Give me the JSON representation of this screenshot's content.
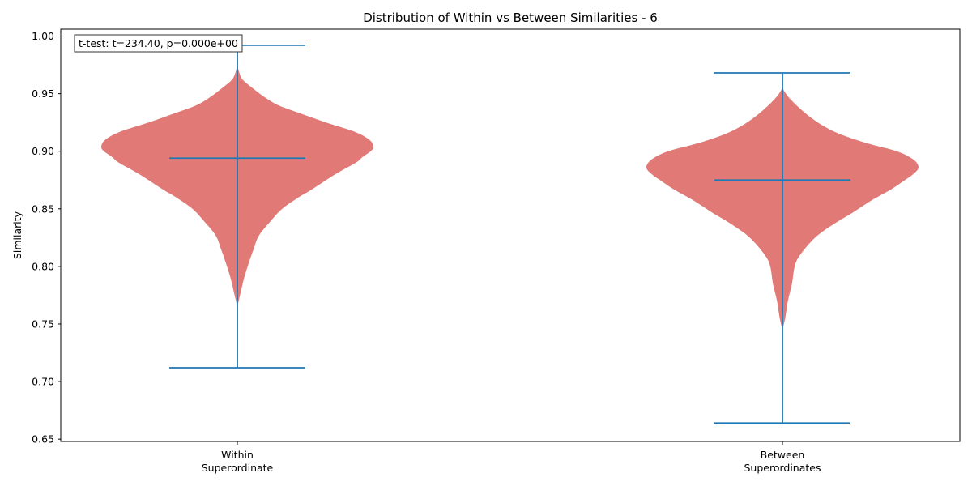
{
  "chart_data": {
    "type": "violin",
    "title": "Distribution of Within vs Between Similarities - 6",
    "ylabel": "Similarity",
    "xlabel": "",
    "ylim": [
      0.648,
      1.006
    ],
    "yticks": [
      "0.65",
      "0.70",
      "0.75",
      "0.80",
      "0.85",
      "0.90",
      "0.95",
      "1.00"
    ],
    "ytick_values": [
      0.65,
      0.7,
      0.75,
      0.8,
      0.85,
      0.9,
      0.95,
      1.0
    ],
    "grid": false,
    "categories": [
      {
        "line1": "Within",
        "line2": "Superordinate"
      },
      {
        "line1": "Between",
        "line2": "Superordinates"
      }
    ],
    "violins": [
      {
        "min": 0.712,
        "max": 0.992,
        "mean": 0.894,
        "density_profile": [
          [
            0.765,
            0.0
          ],
          [
            0.775,
            0.02
          ],
          [
            0.79,
            0.05
          ],
          [
            0.805,
            0.09
          ],
          [
            0.815,
            0.12
          ],
          [
            0.827,
            0.16
          ],
          [
            0.84,
            0.25
          ],
          [
            0.85,
            0.33
          ],
          [
            0.86,
            0.45
          ],
          [
            0.867,
            0.55
          ],
          [
            0.88,
            0.72
          ],
          [
            0.89,
            0.87
          ],
          [
            0.895,
            0.92
          ],
          [
            0.9,
            0.98
          ],
          [
            0.904,
            1.0
          ],
          [
            0.91,
            0.97
          ],
          [
            0.917,
            0.86
          ],
          [
            0.925,
            0.65
          ],
          [
            0.933,
            0.46
          ],
          [
            0.94,
            0.3
          ],
          [
            0.947,
            0.2
          ],
          [
            0.955,
            0.11
          ],
          [
            0.962,
            0.04
          ],
          [
            0.968,
            0.015
          ],
          [
            0.975,
            0.0
          ]
        ]
      },
      {
        "min": 0.664,
        "max": 0.968,
        "mean": 0.875,
        "density_profile": [
          [
            0.745,
            0.0
          ],
          [
            0.755,
            0.02
          ],
          [
            0.77,
            0.04
          ],
          [
            0.785,
            0.07
          ],
          [
            0.8,
            0.09
          ],
          [
            0.81,
            0.13
          ],
          [
            0.825,
            0.24
          ],
          [
            0.837,
            0.38
          ],
          [
            0.847,
            0.52
          ],
          [
            0.857,
            0.65
          ],
          [
            0.867,
            0.8
          ],
          [
            0.875,
            0.9
          ],
          [
            0.88,
            0.96
          ],
          [
            0.886,
            1.0
          ],
          [
            0.893,
            0.96
          ],
          [
            0.9,
            0.84
          ],
          [
            0.907,
            0.62
          ],
          [
            0.915,
            0.42
          ],
          [
            0.922,
            0.3
          ],
          [
            0.93,
            0.2
          ],
          [
            0.938,
            0.12
          ],
          [
            0.945,
            0.06
          ],
          [
            0.95,
            0.025
          ],
          [
            0.955,
            0.0
          ]
        ]
      }
    ],
    "annotation": "t-test: t=234.40, p=0.000e+00",
    "annotation_position": "top-left",
    "colors": {
      "body": "#d9534f",
      "body_alpha": 0.78,
      "lines": "#1f77b4"
    }
  }
}
